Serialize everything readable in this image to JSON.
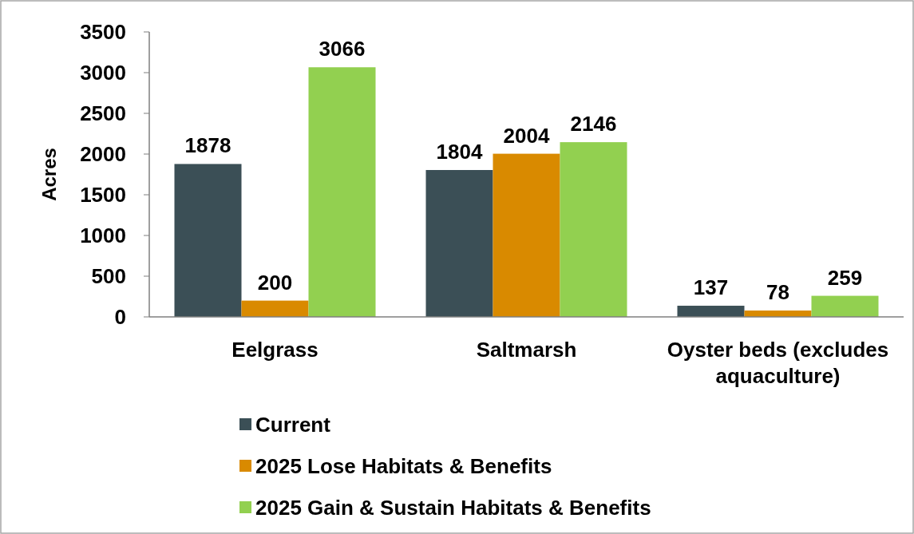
{
  "chart_data": {
    "type": "bar",
    "ylabel": "Acres",
    "categories": [
      "Eelgrass",
      "Saltmarsh",
      "Oyster beds (excludes aquaculture)"
    ],
    "series": [
      {
        "name": "Current",
        "color": "#3b4f56",
        "values": [
          1878,
          1804,
          137
        ]
      },
      {
        "name": "2025 Lose Habitats & Benefits",
        "color": "#d98a00",
        "values": [
          200,
          2004,
          78
        ]
      },
      {
        "name": "2025 Gain & Sustain Habitats & Benefits",
        "color": "#92d050",
        "values": [
          3066,
          2146,
          259
        ]
      }
    ],
    "ylim": [
      0,
      3500
    ],
    "yticks": [
      0,
      500,
      1000,
      1500,
      2000,
      2500,
      3000,
      3500
    ],
    "data_labels": true,
    "grid": false,
    "legend": "bottom"
  }
}
